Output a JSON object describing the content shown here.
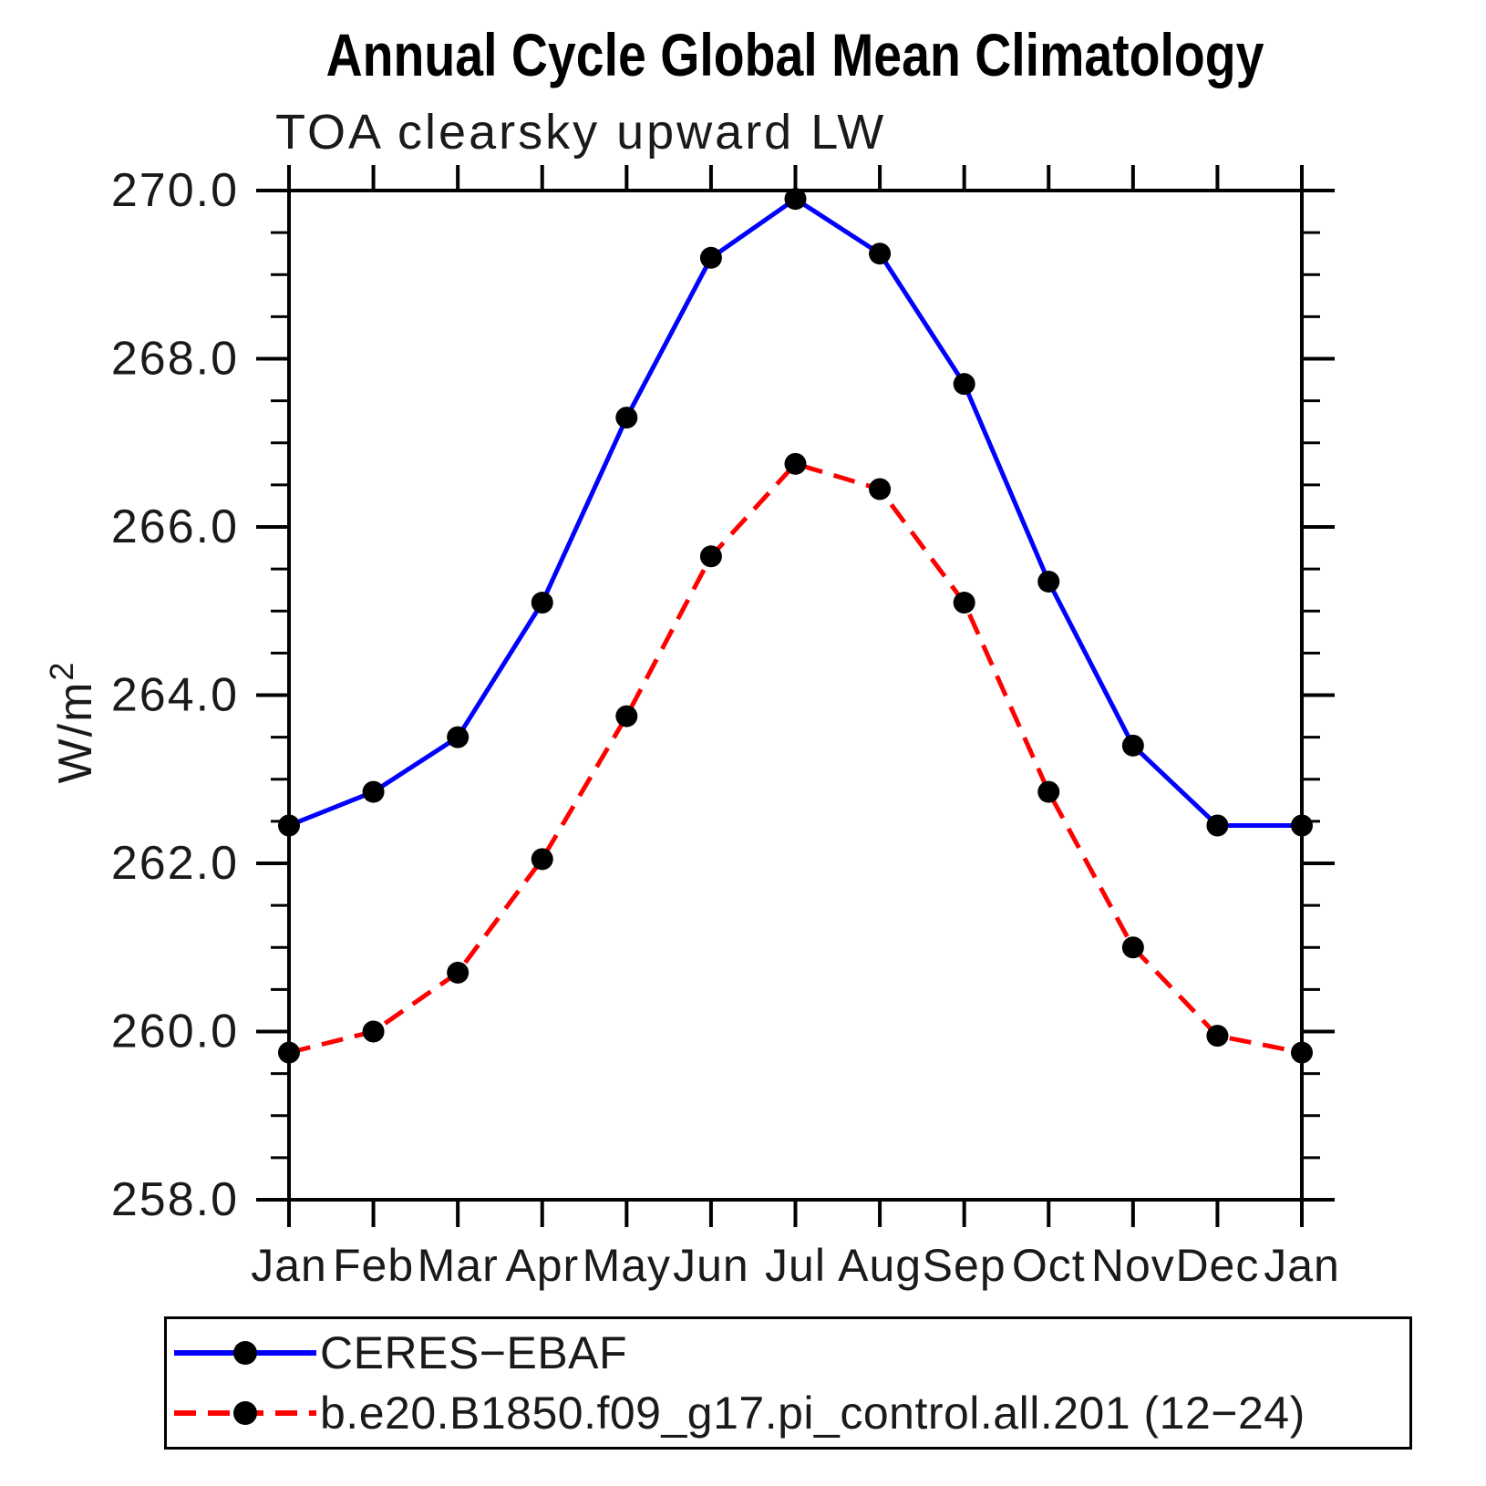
{
  "chart_data": {
    "type": "line",
    "title": "Annual Cycle Global Mean Climatology",
    "subtitle": "TOA clearsky upward LW",
    "ylabel_base": "W/m",
    "ylabel_sup": "2",
    "categories": [
      "Jan",
      "Feb",
      "Mar",
      "Apr",
      "May",
      "Jun",
      "Jul",
      "Aug",
      "Sep",
      "Oct",
      "Nov",
      "Dec",
      "Jan"
    ],
    "ylim": [
      258.0,
      270.0
    ],
    "ytick_major_step": 2.0,
    "ytick_minor_step": 0.5,
    "ytick_labels": [
      "258.0",
      "260.0",
      "262.0",
      "264.0",
      "266.0",
      "268.0",
      "270.0"
    ],
    "grid": false,
    "legend_position": "bottom",
    "axis_color": "#000000",
    "marker_color": "#000000",
    "series": [
      {
        "name": "CERES−EBAF",
        "color": "#0000ff",
        "style": "solid",
        "marker": "filled-circle",
        "values": [
          262.45,
          262.85,
          263.5,
          265.1,
          267.3,
          269.2,
          269.9,
          269.25,
          267.7,
          265.35,
          263.4,
          262.45,
          262.45
        ]
      },
      {
        "name": "b.e20.B1850.f09_g17.pi_control.all.201 (12−24)",
        "color": "#ff0000",
        "style": "dashed",
        "marker": "filled-circle",
        "values": [
          259.75,
          260.0,
          260.7,
          262.05,
          263.75,
          265.65,
          266.75,
          266.45,
          265.1,
          262.85,
          261.0,
          259.95,
          259.75
        ]
      }
    ]
  }
}
